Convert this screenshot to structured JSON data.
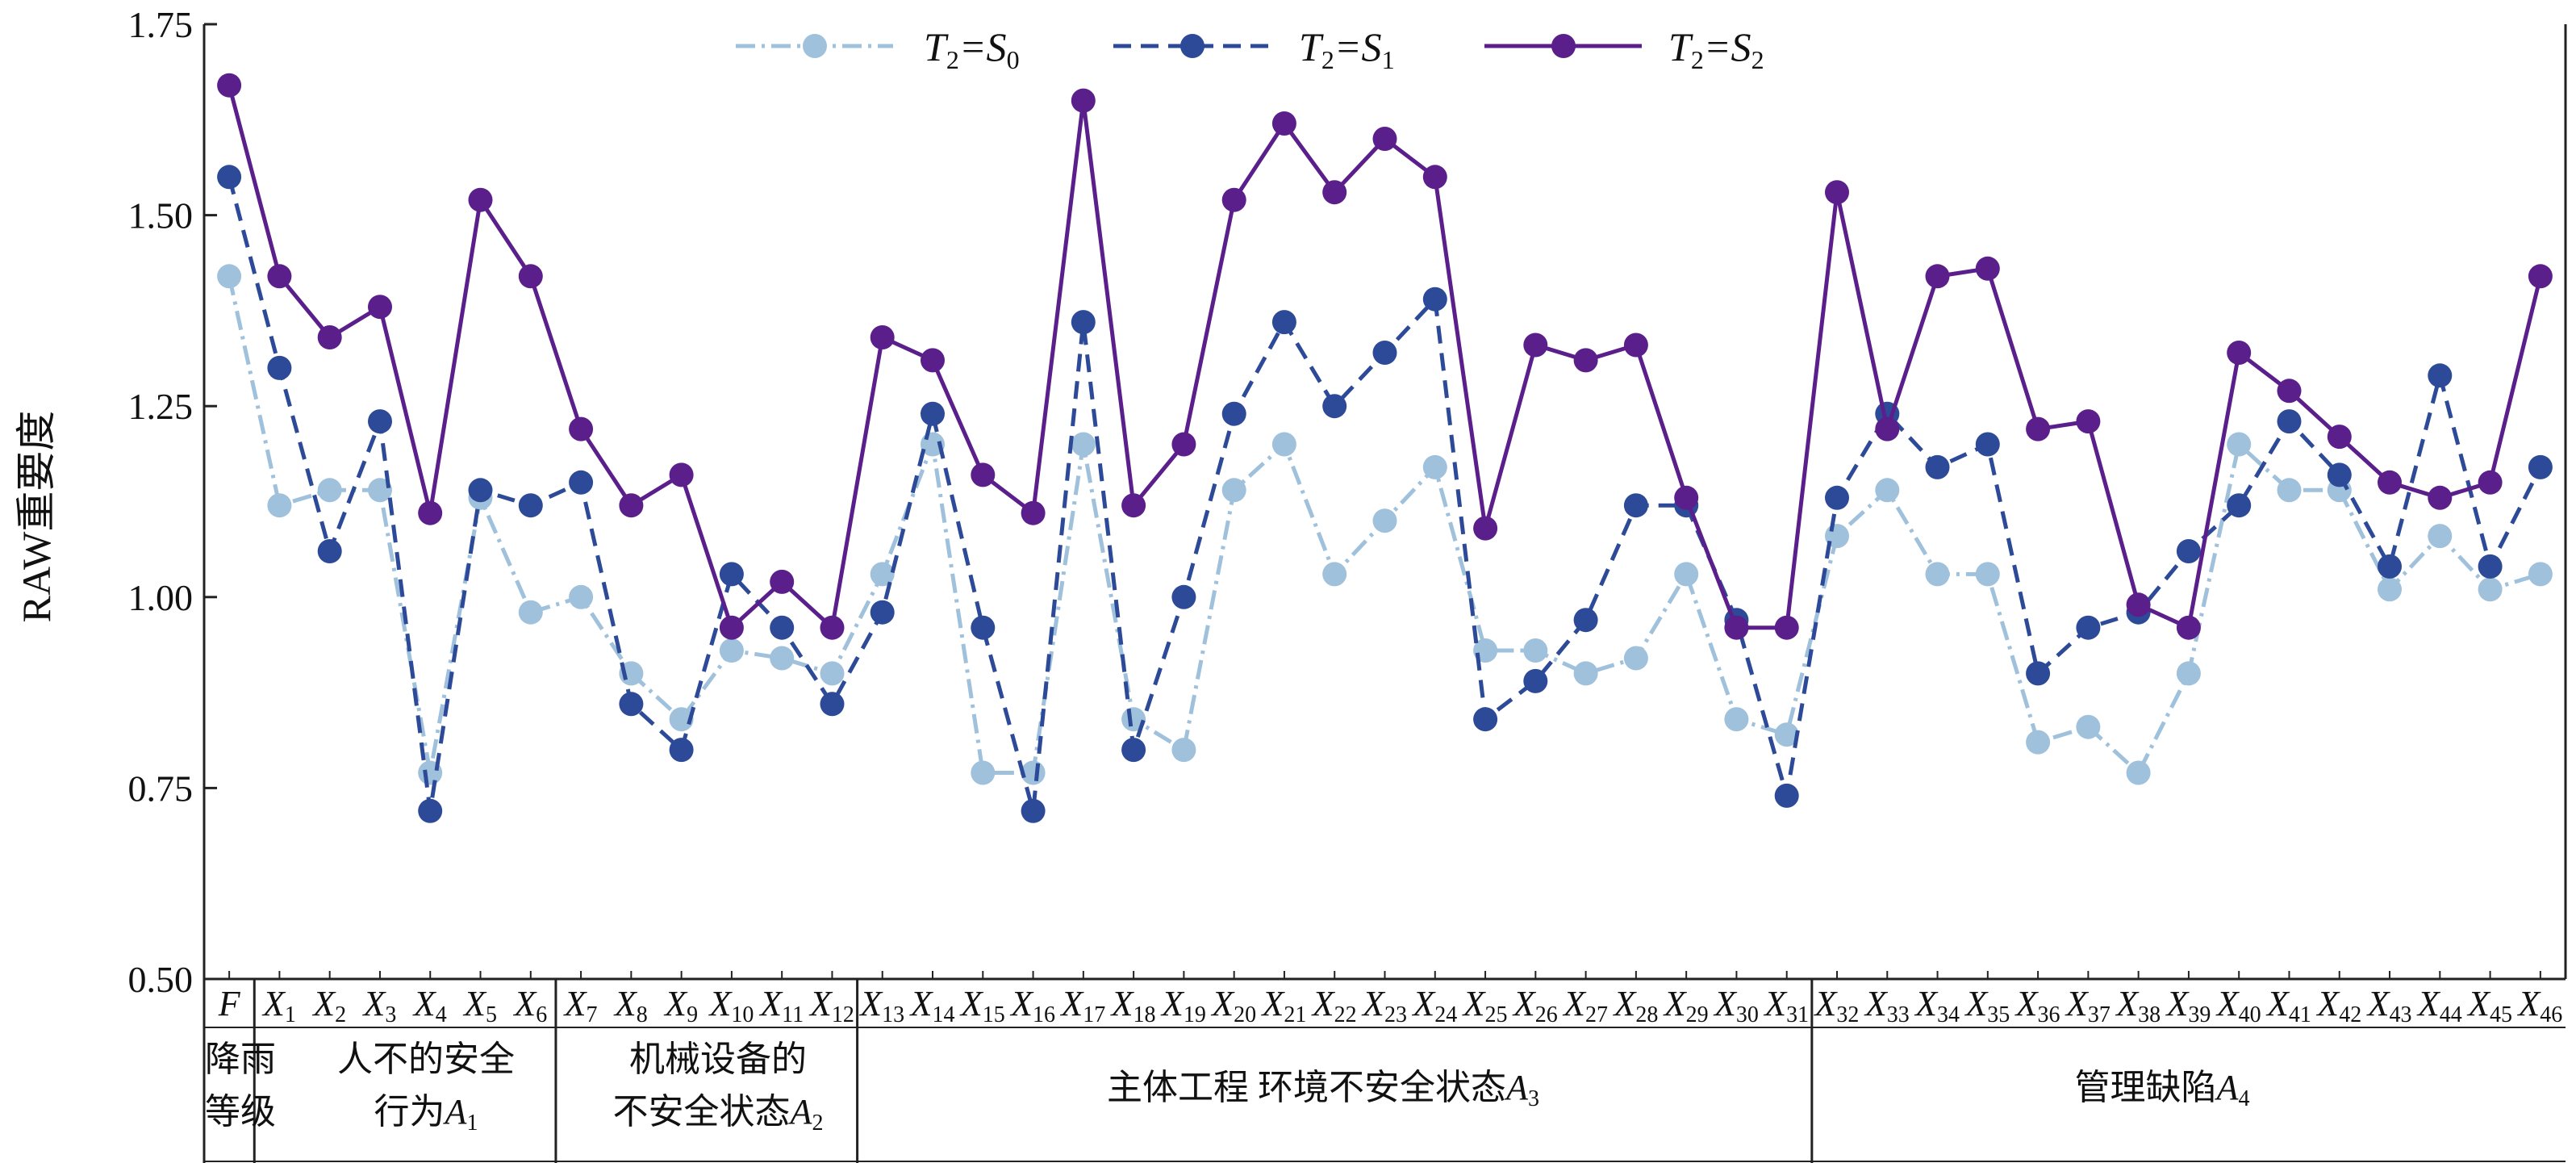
{
  "chart_data": {
    "type": "line",
    "ylabel": "RAW重要度",
    "ylim": [
      0.5,
      1.75
    ],
    "yticks": [
      "0.50",
      "0.75",
      "1.00",
      "1.25",
      "1.50",
      "1.75"
    ],
    "ytick_values": [
      0.5,
      0.75,
      1.0,
      1.25,
      1.5,
      1.75
    ],
    "categories": [
      "F",
      "X1",
      "X2",
      "X3",
      "X4",
      "X5",
      "X6",
      "X7",
      "X8",
      "X9",
      "X10",
      "X11",
      "X12",
      "X13",
      "X14",
      "X15",
      "X16",
      "X17",
      "X18",
      "X19",
      "X20",
      "X21",
      "X22",
      "X23",
      "X24",
      "X25",
      "X26",
      "X27",
      "X28",
      "X29",
      "X30",
      "X31",
      "X32",
      "X33",
      "X34",
      "X35",
      "X36",
      "X37",
      "X38",
      "X39",
      "X40",
      "X41",
      "X42",
      "X43",
      "X44",
      "X45",
      "X46"
    ],
    "series": [
      {
        "name": "T2=S0",
        "color": "#9fc1dc",
        "dash": "dashdot",
        "values": [
          1.42,
          1.12,
          1.14,
          1.14,
          0.77,
          1.13,
          0.98,
          1.0,
          0.9,
          0.84,
          0.93,
          0.92,
          0.9,
          1.03,
          1.2,
          0.77,
          0.77,
          1.2,
          0.84,
          0.8,
          1.14,
          1.2,
          1.03,
          1.1,
          1.17,
          0.93,
          0.93,
          0.9,
          0.92,
          1.03,
          0.84,
          0.82,
          1.08,
          1.14,
          1.03,
          1.03,
          0.81,
          0.83,
          0.77,
          0.9,
          1.2,
          1.14,
          1.14,
          1.01,
          1.08,
          1.01,
          1.03
        ]
      },
      {
        "name": "T2=S1",
        "color": "#2c4a97",
        "dash": "dashed",
        "values": [
          1.55,
          1.3,
          1.06,
          1.23,
          0.72,
          1.14,
          1.12,
          1.15,
          0.86,
          0.8,
          1.03,
          0.96,
          0.86,
          0.98,
          1.24,
          0.96,
          0.72,
          1.36,
          0.8,
          1.0,
          1.24,
          1.36,
          1.25,
          1.32,
          1.39,
          0.84,
          0.89,
          0.97,
          1.12,
          1.12,
          0.97,
          0.74,
          1.13,
          1.24,
          1.17,
          1.2,
          0.9,
          0.96,
          0.98,
          1.06,
          1.12,
          1.23,
          1.16,
          1.04,
          1.29,
          1.04,
          1.17
        ]
      },
      {
        "name": "T2=S2",
        "color": "#5b1f8c",
        "dash": "solid",
        "values": [
          1.67,
          1.42,
          1.34,
          1.38,
          1.11,
          1.52,
          1.42,
          1.22,
          1.12,
          1.16,
          0.96,
          1.02,
          0.96,
          1.34,
          1.31,
          1.16,
          1.11,
          1.65,
          1.12,
          1.2,
          1.52,
          1.62,
          1.53,
          1.6,
          1.55,
          1.09,
          1.33,
          1.31,
          1.33,
          1.13,
          0.96,
          0.96,
          1.53,
          1.22,
          1.42,
          1.43,
          1.22,
          1.23,
          0.99,
          0.96,
          1.32,
          1.27,
          1.21,
          1.15,
          1.13,
          1.15,
          1.42
        ]
      }
    ],
    "legend_position": "top-center",
    "groups": [
      {
        "label": "降雨等级",
        "from": 0,
        "to": 0
      },
      {
        "label": "人不的安全行为A1",
        "from": 1,
        "to": 6
      },
      {
        "label": "机械设备的不安全状态A2",
        "from": 7,
        "to": 12
      },
      {
        "label": "主体工程 环境不安全状态A3",
        "from": 13,
        "to": 31
      },
      {
        "label": "管理缺陷A4",
        "from": 32,
        "to": 46
      }
    ]
  },
  "legend": [
    {
      "pre": "T",
      "sub1": "2",
      "eq": "=S",
      "sub2": "0"
    },
    {
      "pre": "T",
      "sub1": "2",
      "eq": "=S",
      "sub2": "1"
    },
    {
      "pre": "T",
      "sub1": "2",
      "eq": "=S",
      "sub2": "2"
    }
  ],
  "group_labels": {
    "g0_l1": "降雨",
    "g0_l2": "等级",
    "g1_l1": "人不的安全",
    "g1_l2": "行为",
    "g1_var": "A",
    "g1_sub": "1",
    "g2_l1": "机械设备的",
    "g2_l2": "不安全状态",
    "g2_var": "A",
    "g2_sub": "2",
    "g3_text": "主体工程  环境不安全状态",
    "g3_var": "A",
    "g3_sub": "3",
    "g4_text": "管理缺陷",
    "g4_var": "A",
    "g4_sub": "4"
  }
}
